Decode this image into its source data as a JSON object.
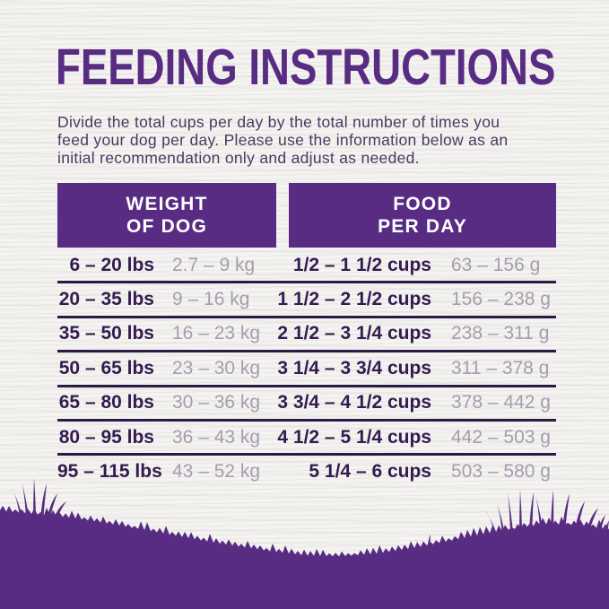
{
  "page": {
    "title": "FEEDING INSTRUCTIONS",
    "intro": "Divide the total cups per day by the total number of times you\nfeed your dog per day. Please use the information below as an\ninitial recommendation only and adjust as needed."
  },
  "colors": {
    "brand_purple": "#582c83",
    "dark_text": "#341b50",
    "intro_text": "#473a5f",
    "muted_text": "#a39dae",
    "divider": "#2c1a45",
    "background": "#f4f3f1",
    "header_text": "#ffffff"
  },
  "table": {
    "headers": {
      "weight": "WEIGHT\nOF DOG",
      "food": "FOOD\nPER DAY"
    },
    "rows": [
      {
        "lbs": "6 – 20 lbs",
        "kg": "2.7 – 9 kg",
        "cups": "1/2 – 1 1/2 cups",
        "grams": "63 – 156 g"
      },
      {
        "lbs": "20 – 35 lbs",
        "kg": "9 – 16 kg",
        "cups": "1 1/2 – 2 1/2 cups",
        "grams": "156 – 238 g"
      },
      {
        "lbs": "35 – 50 lbs",
        "kg": "16 – 23 kg",
        "cups": "2 1/2 – 3 1/4 cups",
        "grams": "238 – 311 g"
      },
      {
        "lbs": "50 – 65 lbs",
        "kg": "23 – 30 kg",
        "cups": "3 1/4 – 3 3/4 cups",
        "grams": "311 – 378 g"
      },
      {
        "lbs": "65 – 80 lbs",
        "kg": "30 – 36 kg",
        "cups": "3 3/4 – 4 1/2 cups",
        "grams": "378 – 442 g"
      },
      {
        "lbs": "80 – 95 lbs",
        "kg": "36 – 43 kg",
        "cups": "4 1/2 – 5 1/4 cups",
        "grams": "442 – 503 g"
      },
      {
        "lbs": "95 – 115 lbs",
        "kg": "43 – 52 kg",
        "cups": "5 1/4 – 6 cups",
        "grams": "503 – 580 g"
      }
    ]
  }
}
